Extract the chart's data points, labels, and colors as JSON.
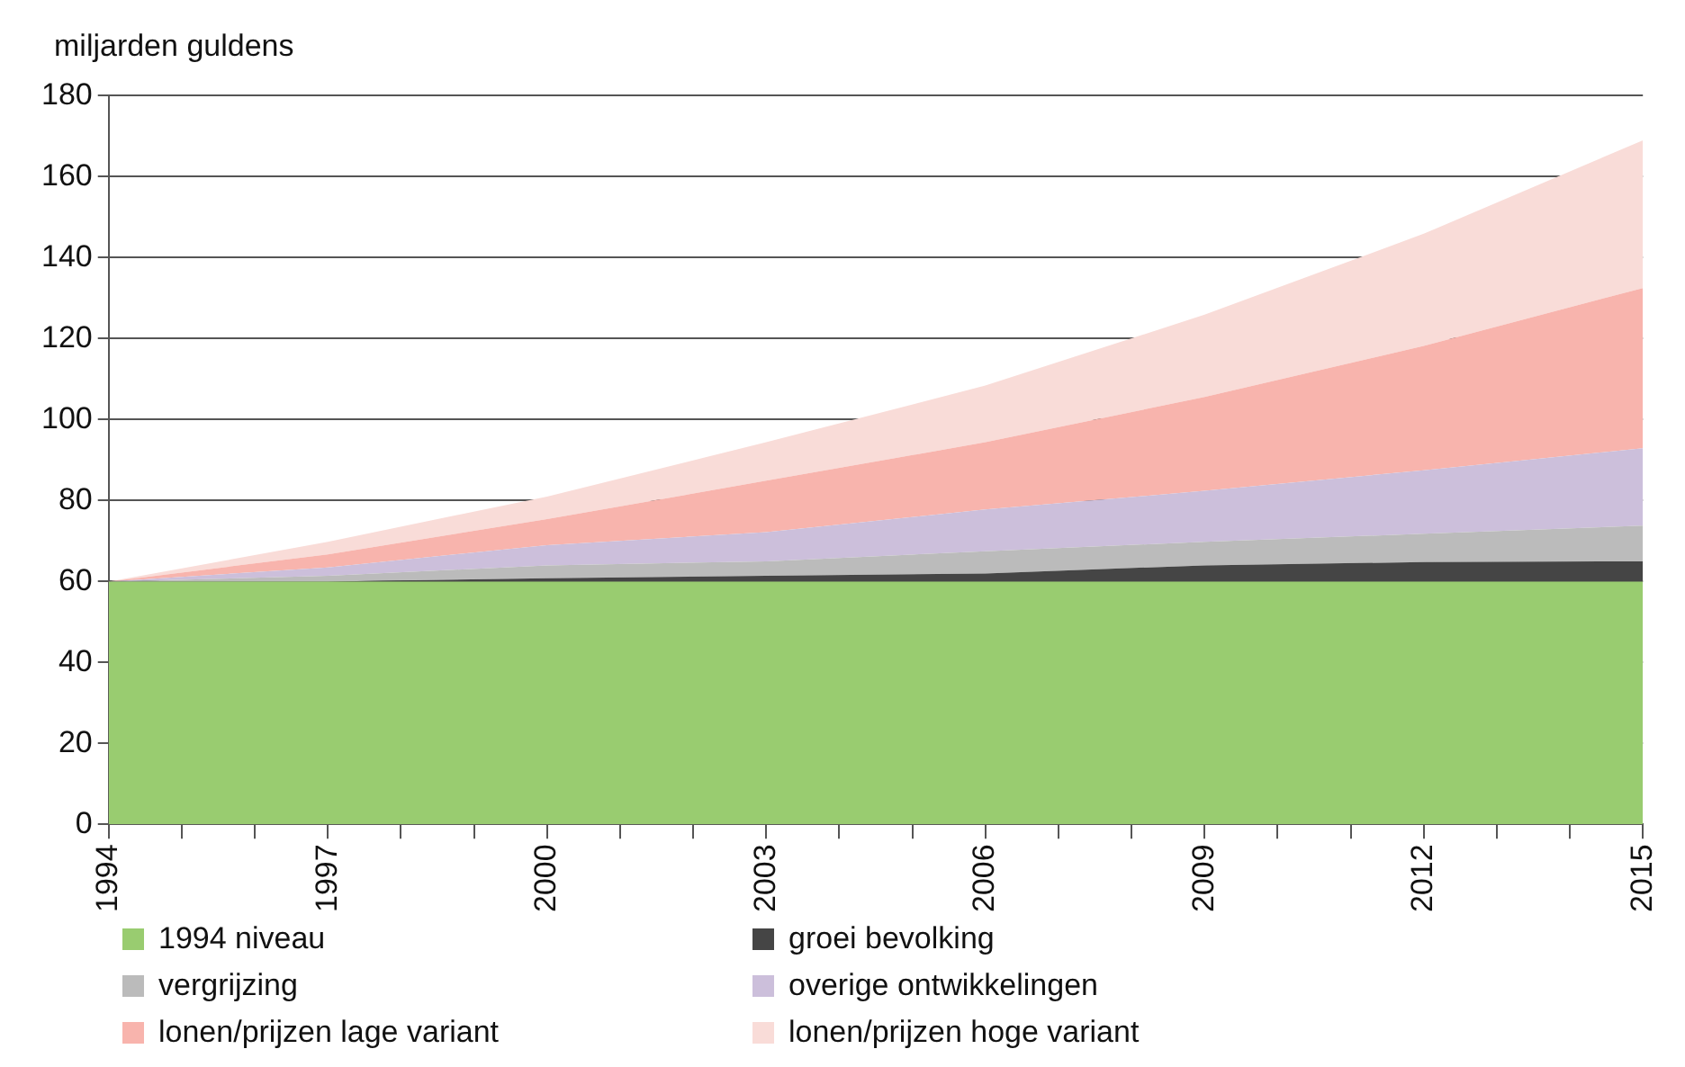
{
  "chart_data": {
    "type": "area",
    "ylabel": "miljarden guldens",
    "stacked": true,
    "x": [
      1994,
      1997,
      2000,
      2003,
      2006,
      2009,
      2012,
      2015
    ],
    "series": [
      {
        "name": "1994 niveau",
        "color": "#99cc70",
        "values": [
          60,
          60,
          60,
          60,
          60,
          60,
          60,
          60
        ]
      },
      {
        "name": "groei bevolking",
        "color": "#454545",
        "values": [
          0,
          0,
          0.8,
          1.4,
          2.0,
          4.0,
          4.8,
          5.0
        ]
      },
      {
        "name": "vergrijzing",
        "color": "#bbbbbb",
        "values": [
          0,
          1.4,
          3.2,
          3.6,
          5.5,
          5.8,
          7.0,
          8.8
        ]
      },
      {
        "name": "overige ontwikkelingen",
        "color": "#ccbfdb",
        "values": [
          0,
          2.1,
          5.0,
          7.2,
          10.3,
          12.6,
          15.7,
          19.1
        ]
      },
      {
        "name": "lonen/prijzen lage variant",
        "color": "#f8b4ad",
        "values": [
          0,
          3.2,
          6.4,
          12.7,
          16.6,
          23.2,
          30.7,
          39.6
        ]
      },
      {
        "name": "lonen/prijzen hoge variant",
        "color": "#f9dcd8",
        "values": [
          0,
          3.1,
          5.6,
          9.5,
          14.0,
          20.3,
          27.7,
          36.5
        ]
      }
    ],
    "xlim": [
      1994,
      2015
    ],
    "xticks": [
      1994,
      {
        "value": 1995,
        "label": null
      },
      {
        "value": 1996,
        "label": null
      },
      1997,
      {
        "value": 1998,
        "label": null
      },
      {
        "value": 1999,
        "label": null
      },
      2000,
      {
        "value": 2001,
        "label": null
      },
      {
        "value": 2002,
        "label": null
      },
      2003,
      {
        "value": 2004,
        "label": null
      },
      {
        "value": 2005,
        "label": null
      },
      2006,
      {
        "value": 2007,
        "label": null
      },
      {
        "value": 2008,
        "label": null
      },
      2009,
      {
        "value": 2010,
        "label": null
      },
      {
        "value": 2011,
        "label": null
      },
      2012,
      {
        "value": 2013,
        "label": null
      },
      {
        "value": 2014,
        "label": null
      },
      2015
    ],
    "ylim": [
      0,
      180
    ],
    "yticks": [
      0,
      20,
      40,
      60,
      80,
      100,
      120,
      140,
      160,
      180
    ],
    "grid": "y",
    "legend": "bottom",
    "marker": "none"
  }
}
